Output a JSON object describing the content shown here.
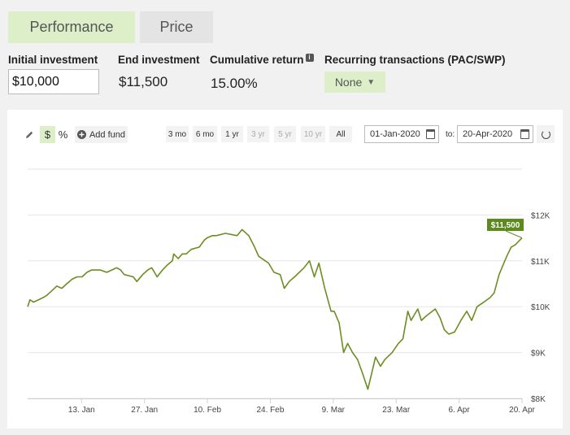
{
  "tabs": [
    {
      "label": "Performance",
      "active": true
    },
    {
      "label": "Price",
      "active": false
    }
  ],
  "fields": {
    "initial_label": "Initial investment",
    "initial_value": "$10,000",
    "end_label": "End investment",
    "end_value": "$11,500",
    "cumulative_label": "Cumulative return",
    "info_glyph": "i",
    "cumulative_value": "15.00%",
    "recurring_label": "Recurring transactions (PAC/SWP)",
    "recurring_value": "None",
    "recurring_caret": "▼"
  },
  "toolbar": {
    "dollar_label": "$",
    "percent_label": "%",
    "add_fund_label": "Add fund",
    "ranges": [
      {
        "label": "3 mo",
        "enabled": true
      },
      {
        "label": "6 mo",
        "enabled": true
      },
      {
        "label": "1 yr",
        "enabled": true
      },
      {
        "label": "3 yr",
        "enabled": false
      },
      {
        "label": "5 yr",
        "enabled": false
      },
      {
        "label": "10 yr",
        "enabled": false
      },
      {
        "label": "All",
        "enabled": true
      }
    ],
    "from_date": "01-Jan-2020",
    "to_label": "to:",
    "to_date": "20-Apr-2020"
  },
  "colors": {
    "line": "#6b8e23",
    "label_bg": "#5c8a1e",
    "accent_bg": "#dcefc9"
  },
  "chart_data": {
    "type": "line",
    "x_tick_labels": [
      "13. Jan",
      "27. Jan",
      "10. Feb",
      "24. Feb",
      "9. Mar",
      "23. Mar",
      "6. Apr",
      "20. Apr"
    ],
    "x_tick_days": [
      12,
      26,
      40,
      54,
      68,
      82,
      96,
      110
    ],
    "y_ticks": [
      8000,
      9000,
      10000,
      11000,
      12000
    ],
    "y_tick_labels": [
      "$8K",
      "$9K",
      "$10K",
      "$11K",
      "$12K"
    ],
    "ylim": [
      8000,
      13000
    ],
    "xlim": [
      0,
      110
    ],
    "end_label": "$11,500",
    "series": [
      {
        "values": [
          [
            0,
            10000
          ],
          [
            0.5,
            10150
          ],
          [
            1.3,
            10100
          ],
          [
            3.5,
            10200
          ],
          [
            4.3,
            10250
          ],
          [
            6.5,
            10450
          ],
          [
            7.6,
            10400
          ],
          [
            8.7,
            10500
          ],
          [
            9.9,
            10600
          ],
          [
            11,
            10650
          ],
          [
            12.1,
            10650
          ],
          [
            13.2,
            10750
          ],
          [
            14.2,
            10800
          ],
          [
            16.2,
            10800
          ],
          [
            17.6,
            10750
          ],
          [
            18.7,
            10800
          ],
          [
            19.8,
            10850
          ],
          [
            20.7,
            10800
          ],
          [
            21.5,
            10700
          ],
          [
            23.5,
            10650
          ],
          [
            24.3,
            10550
          ],
          [
            25.6,
            10700
          ],
          [
            26.7,
            10800
          ],
          [
            27.6,
            10850
          ],
          [
            28.8,
            10650
          ],
          [
            30,
            10800
          ],
          [
            31,
            10900
          ],
          [
            32.2,
            11000
          ],
          [
            32.5,
            11150
          ],
          [
            33.5,
            11050
          ],
          [
            34.4,
            11150
          ],
          [
            35.3,
            11150
          ],
          [
            36.4,
            11250
          ],
          [
            38.2,
            11300
          ],
          [
            39.3,
            11450
          ],
          [
            39.9,
            11500
          ],
          [
            41.1,
            11550
          ],
          [
            42,
            11550
          ],
          [
            44,
            11600
          ],
          [
            46.6,
            11550
          ],
          [
            47.7,
            11680
          ],
          [
            49.2,
            11550
          ],
          [
            50.5,
            11300
          ],
          [
            51.4,
            11100
          ],
          [
            53.6,
            10950
          ],
          [
            54.8,
            10750
          ],
          [
            56.2,
            10700
          ],
          [
            57.1,
            10400
          ],
          [
            58.2,
            10550
          ],
          [
            59.4,
            10650
          ],
          [
            61.5,
            10850
          ],
          [
            62.7,
            11000
          ],
          [
            63.8,
            10650
          ],
          [
            64.8,
            10950
          ],
          [
            66.1,
            10400
          ],
          [
            67.5,
            9900
          ],
          [
            68.2,
            9900
          ],
          [
            69.3,
            9650
          ],
          [
            70.3,
            9000
          ],
          [
            71.2,
            9200
          ],
          [
            72.3,
            9000
          ],
          [
            73.4,
            8850
          ],
          [
            74.5,
            8550
          ],
          [
            75.7,
            8200
          ],
          [
            76.8,
            8650
          ],
          [
            77.4,
            8900
          ],
          [
            78.5,
            8700
          ],
          [
            79.5,
            8850
          ],
          [
            81.1,
            9000
          ],
          [
            82.5,
            9200
          ],
          [
            83.5,
            9300
          ],
          [
            84.6,
            9900
          ],
          [
            85.3,
            9700
          ],
          [
            86.8,
            9950
          ],
          [
            87.6,
            9700
          ],
          [
            88.7,
            9800
          ],
          [
            90.7,
            9950
          ],
          [
            91.8,
            9750
          ],
          [
            92.7,
            9500
          ],
          [
            93.7,
            9400
          ],
          [
            95,
            9450
          ],
          [
            96.4,
            9700
          ],
          [
            97.7,
            9900
          ],
          [
            98.8,
            9700
          ],
          [
            100,
            10000
          ],
          [
            101.5,
            10100
          ],
          [
            102.9,
            10200
          ],
          [
            103.8,
            10300
          ],
          [
            104.9,
            10700
          ],
          [
            106.6,
            11100
          ],
          [
            107.6,
            11300
          ],
          [
            108.5,
            11350
          ],
          [
            110,
            11500
          ]
        ]
      }
    ],
    "grid": "horizontal"
  }
}
